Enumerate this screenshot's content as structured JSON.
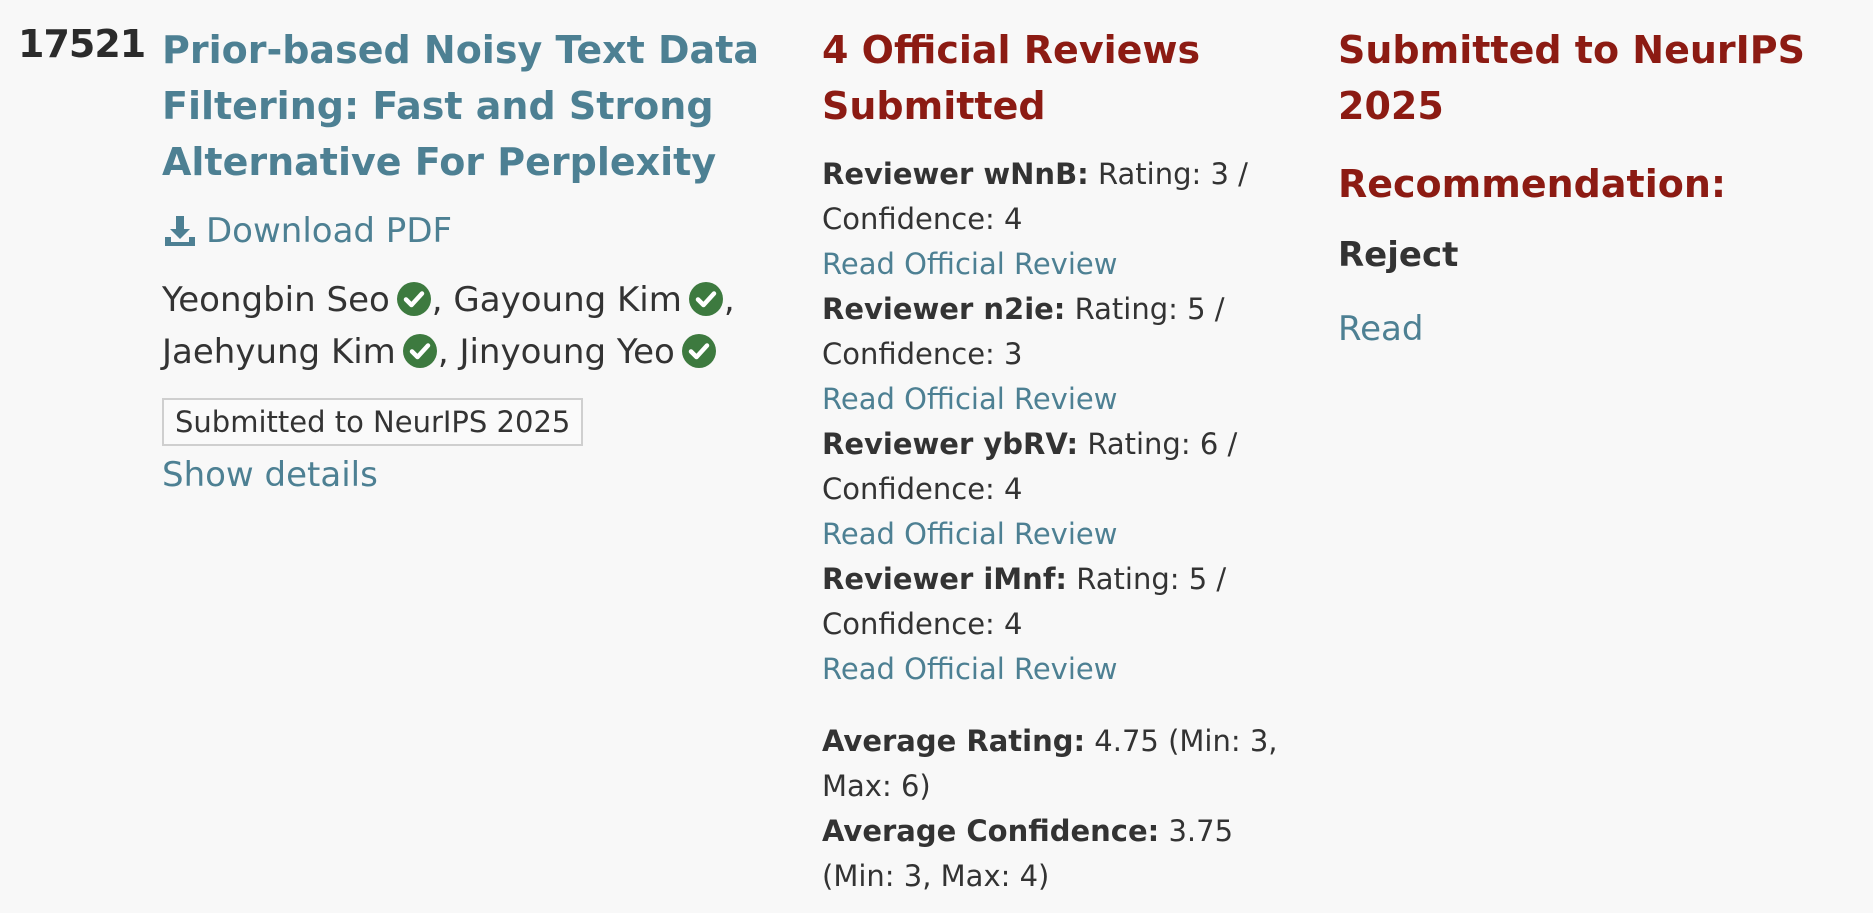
{
  "paper": {
    "number": "17521",
    "title": "Prior-based Noisy Text Data Filtering: Fast and Strong Alternative For Perplexity",
    "download_label": "Download PDF",
    "authors": [
      {
        "name": "Yeongbin Seo",
        "separator": ","
      },
      {
        "name": "Gayoung Kim",
        "separator": ","
      },
      {
        "name": "Jaehyung Kim",
        "separator": ","
      },
      {
        "name": "Jinyoung Yeo",
        "separator": ""
      }
    ],
    "venue_badge": "Submitted to NeurIPS 2025",
    "show_details_label": "Show details"
  },
  "reviews": {
    "heading": "4 Official Reviews Submitted",
    "items": [
      {
        "reviewer": "Reviewer wNnB:",
        "summary": " Rating: 3 / Confidence: 4",
        "link_label": "Read Official Review"
      },
      {
        "reviewer": "Reviewer n2ie:",
        "summary": " Rating: 5 / Confidence: 3",
        "link_label": "Read Official Review"
      },
      {
        "reviewer": "Reviewer ybRV:",
        "summary": " Rating: 6 / Confidence: 4",
        "link_label": "Read Official Review"
      },
      {
        "reviewer": "Reviewer iMnf:",
        "summary": " Rating: 5 / Confidence: 4",
        "link_label": "Read Official Review"
      }
    ],
    "average_rating_label": "Average Rating:",
    "average_rating_value": " 4.75 (Min: 3, Max: 6)",
    "average_confidence_label": "Average Confidence:",
    "average_confidence_value": " 3.75 (Min: 3, Max: 4)"
  },
  "decision": {
    "heading": "Submitted to NeurIPS 2025",
    "recommendation_label": "Recommendation:",
    "recommendation_value": "Reject",
    "read_label": "Read"
  },
  "colors": {
    "link": "#4d8093",
    "heading_red": "#8c1b13",
    "verified_green": "#3d7a3f",
    "text": "#333333",
    "background": "#f8f8f8"
  },
  "icons": {
    "download": "download-icon",
    "verified": "verified-check-icon"
  }
}
